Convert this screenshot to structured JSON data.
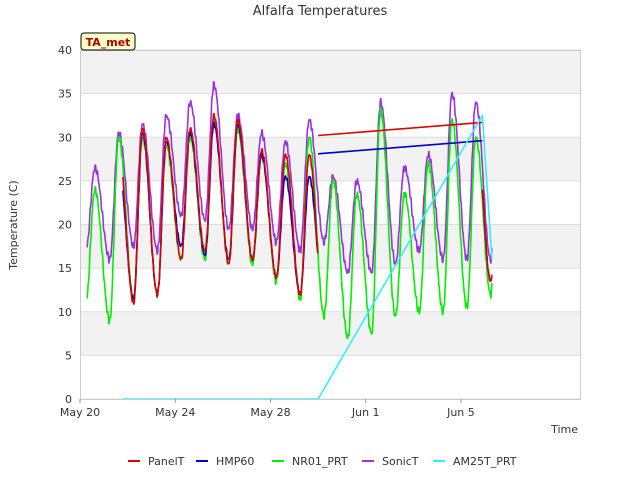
{
  "chart_data": {
    "type": "line",
    "title": "Alfalfa Temperatures",
    "xlabel": "Time",
    "ylabel": "Temperature (C)",
    "ylim": [
      0,
      40
    ],
    "xlim_days": [
      20,
      41
    ],
    "yticks": [
      "0",
      "5",
      "10",
      "15",
      "20",
      "25",
      "30",
      "35",
      "40"
    ],
    "xticks": [
      {
        "day": 20,
        "label": "May 20"
      },
      {
        "day": 24,
        "label": "May 24"
      },
      {
        "day": 28,
        "label": "May 28"
      },
      {
        "day": 32,
        "label": "Jun 1"
      },
      {
        "day": 36,
        "label": "Jun 5"
      }
    ],
    "grid": "horizontal bands",
    "legend_position": "bottom",
    "site_tag": "TA_met",
    "series": [
      {
        "name": "PanelT",
        "color": "#dd0000",
        "daily_min": [
          null,
          null,
          11.0,
          12.0,
          16.0,
          17.0,
          15.5,
          16.0,
          14.0,
          12.0,
          9.5
        ],
        "daily_max": [
          null,
          28.5,
          31.0,
          30.0,
          31.0,
          32.5,
          32.0,
          28.5,
          28.0
        ],
        "straight_segment": {
          "from": [
            30.0,
            30.2
          ],
          "to": [
            36.9,
            31.7
          ]
        }
      },
      {
        "name": "HMP60",
        "color": "#0000cc",
        "daily_min": [
          null,
          null,
          11.5,
          12.0,
          17.5,
          16.5,
          16.0,
          16.0,
          14.0,
          12.0,
          11.0
        ],
        "daily_max": [
          null,
          26.5,
          30.5,
          29.5,
          30.5,
          31.5,
          31.5,
          28.0,
          25.5
        ],
        "straight_segment": {
          "from": [
            30.0,
            28.1
          ],
          "to": [
            36.9,
            29.6
          ]
        }
      },
      {
        "name": "NR01_PRT",
        "color": "#00ee00",
        "daily_min": [
          11.0,
          9.0,
          11.5,
          12.0,
          16.0,
          16.0,
          15.5,
          15.5,
          13.5,
          11.5,
          9.5,
          7.0,
          7.5,
          9.5,
          10.0,
          10.0,
          10.5,
          12.0,
          15.0
        ],
        "daily_max": [
          24.0,
          30.0,
          30.0,
          29.0,
          30.0,
          32.0,
          31.0,
          28.0,
          27.0,
          30.0,
          25.0,
          23.5,
          33.0,
          23.5,
          27.0,
          32.0,
          30.0
        ]
      },
      {
        "name": "SonicT",
        "color": "#9933dd",
        "daily_min": [
          17.0,
          16.0,
          17.5,
          17.0,
          21.0,
          20.5,
          19.5,
          19.5,
          18.0,
          17.0,
          18.0,
          14.5,
          14.5,
          15.5,
          17.0,
          16.0,
          16.0,
          16.0,
          21.0
        ],
        "daily_max": [
          26.5,
          30.5,
          31.5,
          32.5,
          34.0,
          36.0,
          32.5,
          30.5,
          29.5,
          32.0,
          25.5,
          25.0,
          34.0,
          26.5,
          28.0,
          35.0,
          34.0
        ]
      },
      {
        "name": "AM25T_PRT",
        "color": "#33eeff",
        "points": [
          [
            21.8,
            0.0
          ],
          [
            30.0,
            0.0
          ],
          [
            36.9,
            32.5
          ],
          [
            37.3,
            16.0
          ]
        ]
      }
    ]
  }
}
